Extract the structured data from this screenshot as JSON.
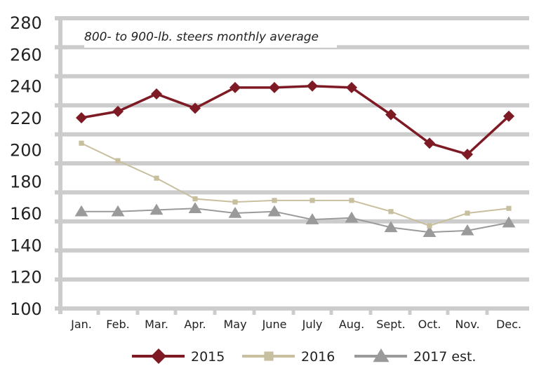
{
  "chart_data": {
    "type": "line",
    "title": "800- to 900-lb. steers monthly average",
    "xlabel": "",
    "ylabel": "",
    "categories": [
      "Jan.",
      "Feb.",
      "Mar.",
      "Apr.",
      "May",
      "June",
      "July",
      "Aug.",
      "Sept.",
      "Oct.",
      "Nov.",
      "Dec."
    ],
    "yticks": [
      "100",
      "120",
      "140",
      "160",
      "180",
      "200",
      "220",
      "240",
      "260",
      "280"
    ],
    "ylim": [
      100,
      280
    ],
    "grid": true,
    "legend_position": "bottom",
    "series": [
      {
        "name": "2015",
        "color": "#7d1a24",
        "marker": "diamond",
        "values": [
          220,
          224,
          235,
          226,
          239,
          239,
          240,
          239,
          222,
          204,
          197,
          221
        ]
      },
      {
        "name": "2016",
        "color": "#c8bf9f",
        "marker": "square",
        "values": [
          204,
          193,
          182,
          169,
          167,
          168,
          168,
          168,
          161,
          152,
          160,
          163
        ]
      },
      {
        "name": "2017 est.",
        "color": "#9a9a9a",
        "marker": "triangle",
        "values": [
          161,
          161,
          162,
          163,
          160,
          161,
          156,
          157,
          151,
          148,
          149,
          154
        ]
      }
    ]
  }
}
